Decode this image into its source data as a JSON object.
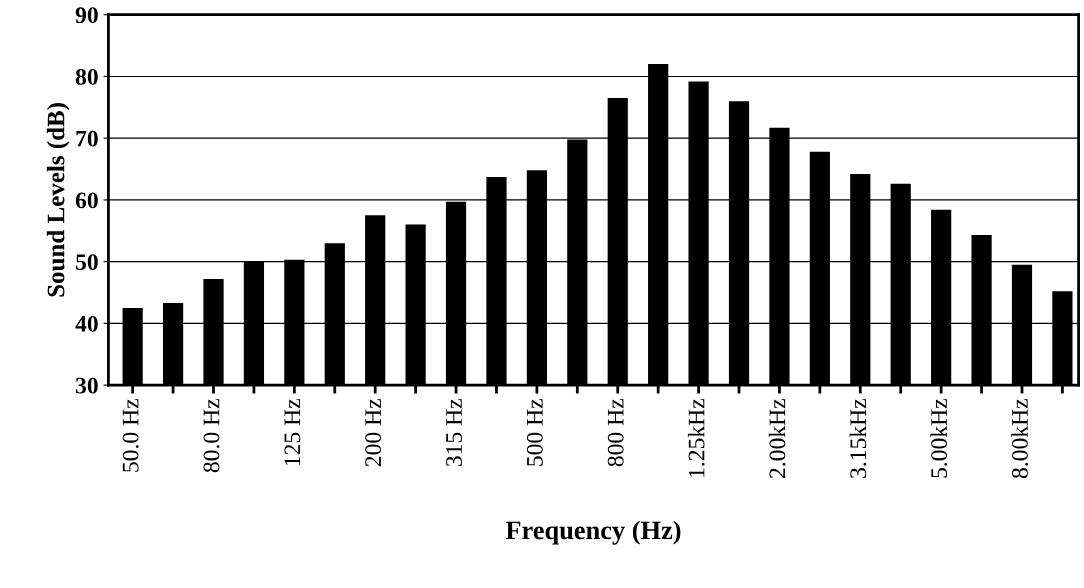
{
  "chart_data": {
    "type": "bar",
    "xlabel": "Frequency (Hz)",
    "ylabel": "Sound Levels (dB)",
    "categories": [
      "50.0 Hz",
      null,
      "80.0 Hz",
      null,
      "125 Hz",
      null,
      "200 Hz",
      null,
      "315 Hz",
      null,
      "500 Hz",
      null,
      "800 Hz",
      null,
      "1.25kHz",
      null,
      "2.00kHz",
      null,
      "3.15kHz",
      null,
      "5.00kHz",
      null,
      "8.00kHz",
      null
    ],
    "values": [
      42.5,
      43.3,
      47.2,
      50,
      50.3,
      53,
      57.5,
      56,
      59.7,
      63.7,
      64.8,
      69.8,
      76.5,
      82,
      79.2,
      76,
      71.7,
      67.8,
      64.2,
      62.6,
      58.4,
      54.3,
      49.5,
      45.2
    ],
    "color": "#000000",
    "ylim": [
      30,
      90
    ],
    "yticks": [
      30,
      40,
      50,
      60,
      70,
      80,
      90
    ],
    "grid": "y",
    "legend": false
  }
}
